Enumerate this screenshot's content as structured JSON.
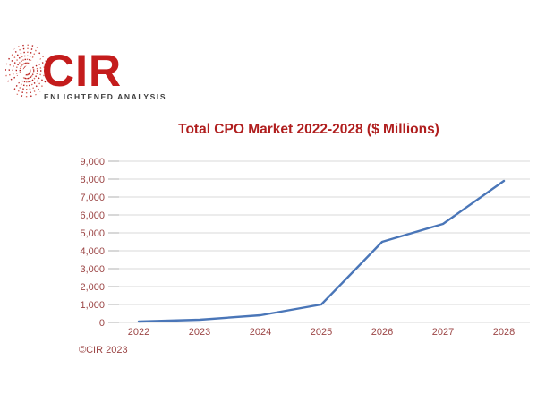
{
  "logo": {
    "name": "CIR",
    "tagline": "ENLIGHTENED ANALYSIS",
    "globe_icon": "dotted-globe",
    "brand_red": "#c41c1c",
    "tagline_color": "#3d3d3d"
  },
  "chart_data": {
    "type": "line",
    "title": "Total CPO Market 2022-2028 ($ Millions)",
    "xlabel": "",
    "ylabel": "",
    "categories": [
      "2022",
      "2023",
      "2024",
      "2025",
      "2026",
      "2027",
      "2028"
    ],
    "series": [
      {
        "name": "Total CPO Market ($ Millions)",
        "values": [
          50,
          150,
          400,
          1000,
          4500,
          5500,
          7900
        ],
        "color": "#4a76b8"
      }
    ],
    "ylim": [
      0,
      9000
    ],
    "ytick_step": 1000,
    "yticks": [
      0,
      1000,
      2000,
      3000,
      4000,
      5000,
      6000,
      7000,
      8000,
      9000
    ],
    "ytick_labels": [
      "0",
      "1,000",
      "2,000",
      "3,000",
      "4,000",
      "5,000",
      "6,000",
      "7,000",
      "8,000",
      "9,000"
    ],
    "grid": "horizontal",
    "legend": "none",
    "gridline_color": "#d9d9d9",
    "tick_color": "#b2b2b2",
    "axis_label_color": "#9c4646",
    "title_color": "#b01e1e"
  },
  "footer": {
    "copyright": "©CIR 2023"
  }
}
